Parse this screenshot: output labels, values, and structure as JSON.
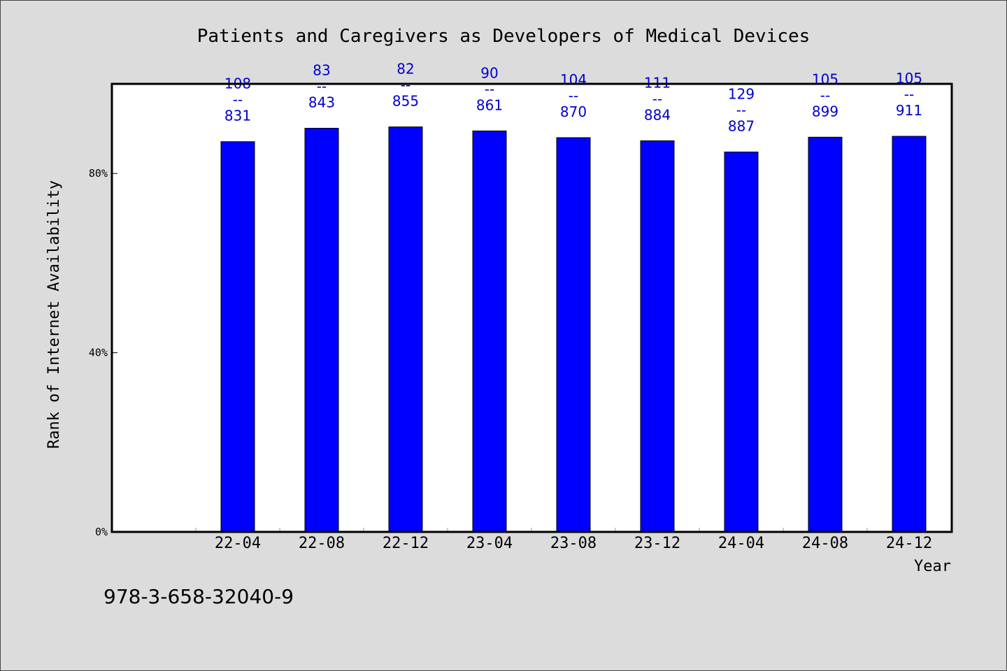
{
  "footer_text": "978-3-658-32040-9",
  "chart_data": {
    "type": "bar",
    "title": "Patients and Caregivers as Developers of Medical Devices",
    "xlabel": "Year",
    "ylabel": "Rank of Internet Availability",
    "categories": [
      "22-04",
      "22-08",
      "22-12",
      "23-04",
      "23-08",
      "23-12",
      "24-04",
      "24-08",
      "24-12"
    ],
    "values": [
      87.1,
      90.1,
      90.4,
      89.5,
      88.0,
      87.3,
      84.8,
      88.1,
      88.3
    ],
    "value_unit": "%",
    "ylim": [
      0,
      100
    ],
    "yticks": [
      {
        "value": 0,
        "label": "0%"
      },
      {
        "value": 40,
        "label": "40%"
      },
      {
        "value": 80,
        "label": "80%"
      }
    ],
    "data_labels": [
      {
        "top": "108",
        "sep": "--",
        "bottom": "831"
      },
      {
        "top": "83",
        "sep": "--",
        "bottom": "843"
      },
      {
        "top": "82",
        "sep": "--",
        "bottom": "855"
      },
      {
        "top": "90",
        "sep": "--",
        "bottom": "861"
      },
      {
        "top": "104",
        "sep": "--",
        "bottom": "870"
      },
      {
        "top": "111",
        "sep": "--",
        "bottom": "884"
      },
      {
        "top": "129",
        "sep": "--",
        "bottom": "887"
      },
      {
        "top": "105",
        "sep": "--",
        "bottom": "899"
      },
      {
        "top": "105",
        "sep": "--",
        "bottom": "911"
      }
    ],
    "grid": false,
    "legend": "none",
    "colors": {
      "bar": "#0000ff",
      "label": "#0000cc",
      "plot_bg": "#ffffff",
      "page_bg": "#dcdcdc"
    }
  }
}
